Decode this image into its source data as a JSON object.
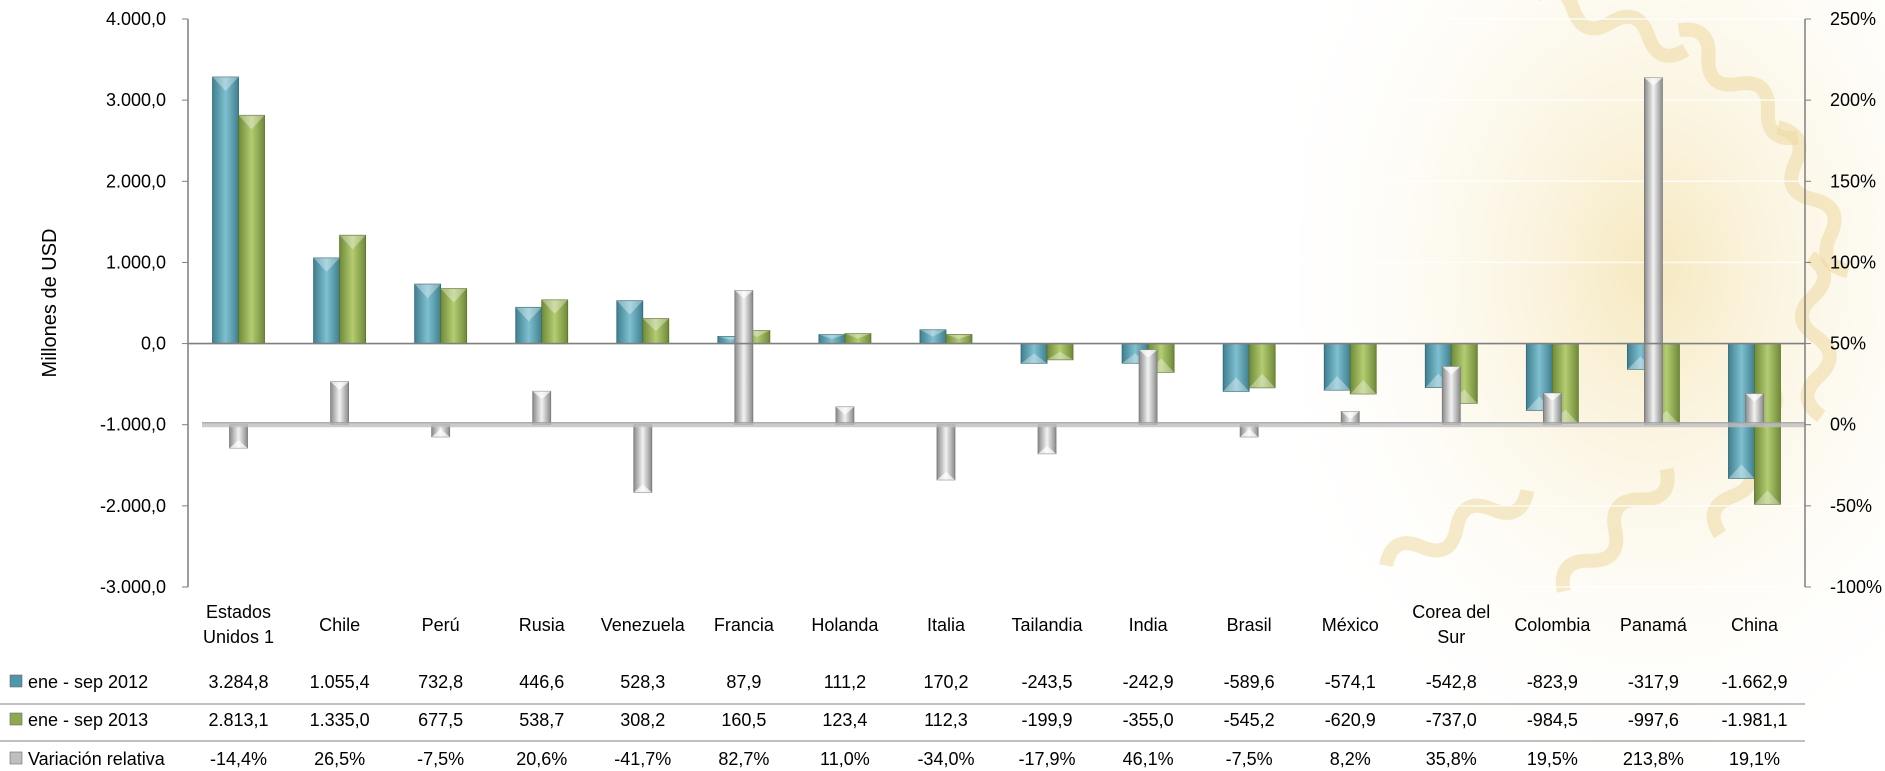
{
  "chart_data": {
    "type": "bar",
    "ylabel": "Millones de USD",
    "ylim": [
      -3000,
      4000
    ],
    "y2lim": [
      -100,
      250
    ],
    "yticks": [
      "4.000,0",
      "3.000,0",
      "2.000,0",
      "1.000,0",
      "0,0",
      "-1.000,0",
      "-2.000,0",
      "-3.000,0"
    ],
    "y2ticks": [
      "250%",
      "200%",
      "150%",
      "100%",
      "50%",
      "0%",
      "-50%",
      "-100%"
    ],
    "categories": [
      [
        "Estados",
        "Unidos 1"
      ],
      [
        "Chile"
      ],
      [
        "Perú"
      ],
      [
        "Rusia"
      ],
      [
        "Venezuela"
      ],
      [
        "Francia"
      ],
      [
        "Holanda"
      ],
      [
        "Italia"
      ],
      [
        "Tailandia"
      ],
      [
        "India"
      ],
      [
        "Brasil"
      ],
      [
        "México"
      ],
      [
        "Corea del",
        "Sur"
      ],
      [
        "Colombia"
      ],
      [
        "Panamá"
      ],
      [
        "China"
      ]
    ],
    "series": [
      {
        "name": "ene - sep   2012",
        "axis": "left",
        "color": "#4f97a8",
        "values": [
          3284.8,
          1055.4,
          732.8,
          446.6,
          528.3,
          87.9,
          111.2,
          170.2,
          -243.5,
          -242.9,
          -589.6,
          -574.1,
          -542.8,
          -823.9,
          -317.9,
          -1662.9
        ],
        "labels": [
          "3.284,8",
          "1.055,4",
          "732,8",
          "446,6",
          "528,3",
          "87,9",
          "111,2",
          "170,2",
          "-243,5",
          "-242,9",
          "-589,6",
          "-574,1",
          "-542,8",
          "-823,9",
          "-317,9",
          "-1.662,9"
        ]
      },
      {
        "name": "ene - sep   2013",
        "axis": "left",
        "color": "#8fa84e",
        "values": [
          2813.1,
          1335.0,
          677.5,
          538.7,
          308.2,
          160.5,
          123.4,
          112.3,
          -199.9,
          -355.0,
          -545.2,
          -620.9,
          -737.0,
          -984.5,
          -997.6,
          -1981.1
        ],
        "labels": [
          "2.813,1",
          "1.335,0",
          "677,5",
          "538,7",
          "308,2",
          "160,5",
          "123,4",
          "112,3",
          "-199,9",
          "-355,0",
          "-545,2",
          "-620,9",
          "-737,0",
          "-984,5",
          "-997,6",
          "-1.981,1"
        ]
      },
      {
        "name": "Variación relativa",
        "axis": "right",
        "color": "#a6a6a6",
        "values": [
          -14.4,
          26.5,
          -7.5,
          20.6,
          -41.7,
          82.7,
          11.0,
          -34.0,
          -17.9,
          46.1,
          -7.5,
          8.2,
          35.8,
          19.5,
          213.8,
          19.1
        ],
        "labels": [
          "-14,4%",
          "26,5%",
          "-7,5%",
          "20,6%",
          "-41,7%",
          "82,7%",
          "11,0%",
          "-34,0%",
          "-17,9%",
          "46,1%",
          "-7,5%",
          "8,2%",
          "35,8%",
          "19,5%",
          "213,8%",
          "19,1%"
        ]
      }
    ]
  }
}
